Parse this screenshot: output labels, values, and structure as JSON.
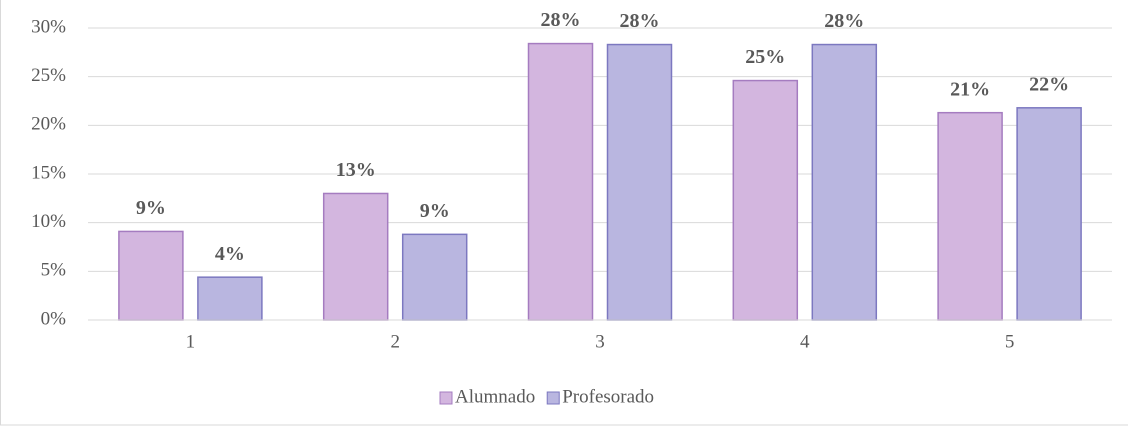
{
  "chart_data": {
    "type": "bar",
    "categories": [
      "1",
      "2",
      "3",
      "4",
      "5"
    ],
    "series": [
      {
        "name": "Alumnado",
        "color": "#d3b6df",
        "values": [
          9.1,
          13,
          28.4,
          24.6,
          21.3
        ],
        "value_labels": [
          "9%",
          "13%",
          "28%",
          "25%",
          "21%"
        ]
      },
      {
        "name": "Profesorado",
        "color": "#b9b6e0",
        "values": [
          4.4,
          8.8,
          28.3,
          28.3,
          21.8
        ],
        "value_labels": [
          "4%",
          "9%",
          "28%",
          "28%",
          "22%"
        ]
      }
    ],
    "ylim": [
      0,
      30
    ],
    "yticks": [
      {
        "value": 0,
        "label": "0%"
      },
      {
        "value": 5,
        "label": "5%"
      },
      {
        "value": 10,
        "label": "10%"
      },
      {
        "value": 15,
        "label": "15%"
      },
      {
        "value": 20,
        "label": "20%"
      },
      {
        "value": 25,
        "label": "25%"
      },
      {
        "value": 30,
        "label": "30%"
      }
    ],
    "grid": true,
    "legend": "bottom"
  }
}
